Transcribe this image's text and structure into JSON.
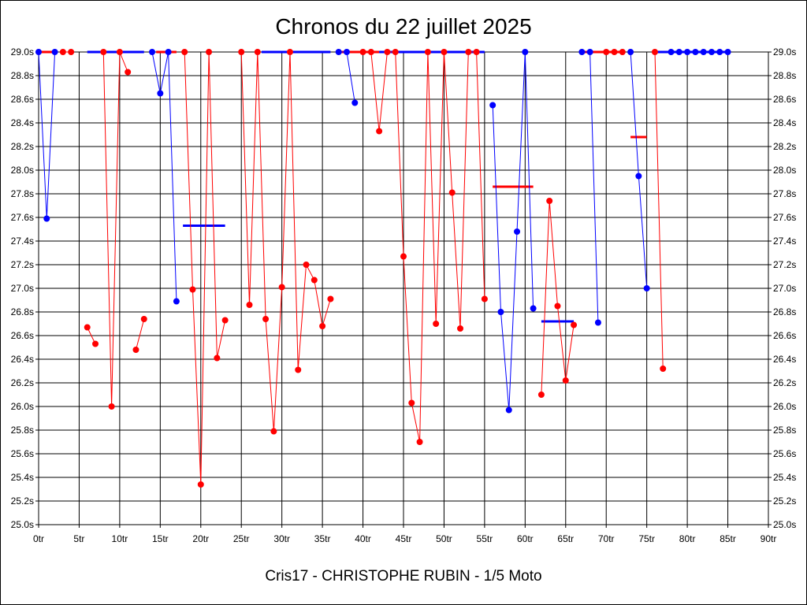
{
  "chart_data": {
    "type": "line",
    "title": "Chronos du 22 juillet 2025",
    "subtitle": "Cris17 - CHRISTOPHE RUBIN - 1/5 Moto",
    "xlabel": "",
    "ylabel": "",
    "xlim": [
      0,
      90
    ],
    "ylim": [
      25.0,
      29.0
    ],
    "grid": true,
    "x_ticks": [
      "0tr",
      "5tr",
      "10tr",
      "15tr",
      "20tr",
      "25tr",
      "30tr",
      "35tr",
      "40tr",
      "45tr",
      "50tr",
      "55tr",
      "60tr",
      "65tr",
      "70tr",
      "75tr",
      "80tr",
      "85tr",
      "90tr"
    ],
    "y_ticks": [
      "25.0s",
      "25.2s",
      "25.4s",
      "25.6s",
      "25.8s",
      "26.0s",
      "26.2s",
      "26.4s",
      "26.6s",
      "26.8s",
      "27.0s",
      "27.2s",
      "27.4s",
      "27.6s",
      "27.8s",
      "28.0s",
      "28.2s",
      "28.4s",
      "28.6s",
      "28.8s",
      "29.0s"
    ],
    "colors": {
      "blue": "#0000ff",
      "red": "#ff0000"
    },
    "runs": [
      {
        "color": "blue",
        "points": [
          [
            0,
            29.0
          ],
          [
            1,
            27.59
          ],
          [
            2,
            29.0
          ]
        ]
      },
      {
        "color": "red",
        "points": [
          [
            3,
            29.0
          ],
          [
            4,
            29.0
          ]
        ]
      },
      {
        "color": "red",
        "points": [
          [
            6,
            26.67
          ],
          [
            7,
            26.53
          ]
        ]
      },
      {
        "color": "red",
        "points": [
          [
            8,
            29.0
          ],
          [
            9,
            26.0
          ],
          [
            10,
            29.0
          ],
          [
            11,
            28.83
          ]
        ]
      },
      {
        "color": "red",
        "points": [
          [
            12,
            26.48
          ],
          [
            13,
            26.74
          ]
        ]
      },
      {
        "color": "blue",
        "points": [
          [
            14,
            29.0
          ],
          [
            15,
            28.65
          ],
          [
            16,
            29.0
          ],
          [
            17,
            26.89
          ]
        ]
      },
      {
        "color": "red",
        "points": [
          [
            18,
            29.0
          ],
          [
            19,
            26.99
          ],
          [
            20,
            25.34
          ],
          [
            21,
            29.0
          ],
          [
            22,
            26.41
          ],
          [
            23,
            26.73
          ]
        ]
      },
      {
        "color": "red",
        "points": [
          [
            25,
            29.0
          ],
          [
            26,
            26.86
          ],
          [
            27,
            29.0
          ],
          [
            28,
            26.74
          ],
          [
            29,
            25.79
          ],
          [
            30,
            27.01
          ],
          [
            31,
            29.0
          ],
          [
            32,
            26.31
          ],
          [
            33,
            27.2
          ],
          [
            34,
            27.07
          ],
          [
            35,
            26.68
          ],
          [
            36,
            26.91
          ]
        ]
      },
      {
        "color": "blue",
        "points": [
          [
            37,
            29.0
          ],
          [
            38,
            29.0
          ],
          [
            39,
            28.57
          ]
        ]
      },
      {
        "color": "red",
        "points": [
          [
            40,
            29.0
          ],
          [
            41,
            29.0
          ],
          [
            42,
            28.33
          ],
          [
            43,
            29.0
          ],
          [
            44,
            29.0
          ],
          [
            45,
            27.27
          ],
          [
            46,
            26.03
          ],
          [
            47,
            25.7
          ],
          [
            48,
            29.0
          ],
          [
            49,
            26.7
          ],
          [
            50,
            29.0
          ],
          [
            51,
            27.81
          ],
          [
            52,
            26.66
          ],
          [
            53,
            29.0
          ],
          [
            54,
            29.0
          ],
          [
            55,
            26.91
          ]
        ]
      },
      {
        "color": "blue",
        "points": [
          [
            56,
            28.55
          ],
          [
            57,
            26.8
          ],
          [
            58,
            25.97
          ],
          [
            59,
            27.48
          ],
          [
            60,
            29.0
          ],
          [
            61,
            26.83
          ]
        ]
      },
      {
        "color": "red",
        "points": [
          [
            62,
            26.1
          ],
          [
            63,
            27.74
          ],
          [
            64,
            26.85
          ],
          [
            65,
            26.22
          ],
          [
            66,
            26.69
          ]
        ]
      },
      {
        "color": "blue",
        "points": [
          [
            67,
            29.0
          ],
          [
            68,
            29.0
          ],
          [
            69,
            26.71
          ]
        ]
      },
      {
        "color": "red",
        "points": [
          [
            70,
            29.0
          ],
          [
            71,
            29.0
          ],
          [
            72,
            29.0
          ]
        ]
      },
      {
        "color": "blue",
        "points": [
          [
            73,
            29.0
          ],
          [
            74,
            27.95
          ],
          [
            75,
            27.0
          ]
        ]
      },
      {
        "color": "red",
        "points": [
          [
            76,
            29.0
          ],
          [
            77,
            26.32
          ]
        ]
      },
      {
        "color": "blue",
        "points": [
          [
            78,
            29.0
          ],
          [
            79,
            29.0
          ],
          [
            80,
            29.0
          ],
          [
            81,
            29.0
          ],
          [
            82,
            29.0
          ],
          [
            83,
            29.0
          ],
          [
            84,
            29.0
          ],
          [
            85,
            29.0
          ]
        ]
      }
    ],
    "averages": [
      {
        "color": "red",
        "x_start": 0,
        "x_end": 2,
        "value": 29.0
      },
      {
        "color": "blue",
        "x_start": 6,
        "x_end": 13,
        "value": 29.0
      },
      {
        "color": "red",
        "x_start": 14.5,
        "x_end": 17,
        "value": 29.0
      },
      {
        "color": "blue",
        "x_start": 17.8,
        "x_end": 23,
        "value": 27.53
      },
      {
        "color": "blue",
        "x_start": 27.5,
        "x_end": 36,
        "value": 29.0
      },
      {
        "color": "red",
        "x_start": 37,
        "x_end": 42,
        "value": 29.0
      },
      {
        "color": "blue",
        "x_start": 42,
        "x_end": 55,
        "value": 29.0
      },
      {
        "color": "red",
        "x_start": 56,
        "x_end": 61,
        "value": 27.86
      },
      {
        "color": "blue",
        "x_start": 62,
        "x_end": 66,
        "value": 26.72
      },
      {
        "color": "red",
        "x_start": 67,
        "x_end": 72,
        "value": 29.0
      },
      {
        "color": "red",
        "x_start": 73,
        "x_end": 75,
        "value": 28.28
      },
      {
        "color": "blue",
        "x_start": 76,
        "x_end": 85,
        "value": 29.0
      }
    ]
  }
}
